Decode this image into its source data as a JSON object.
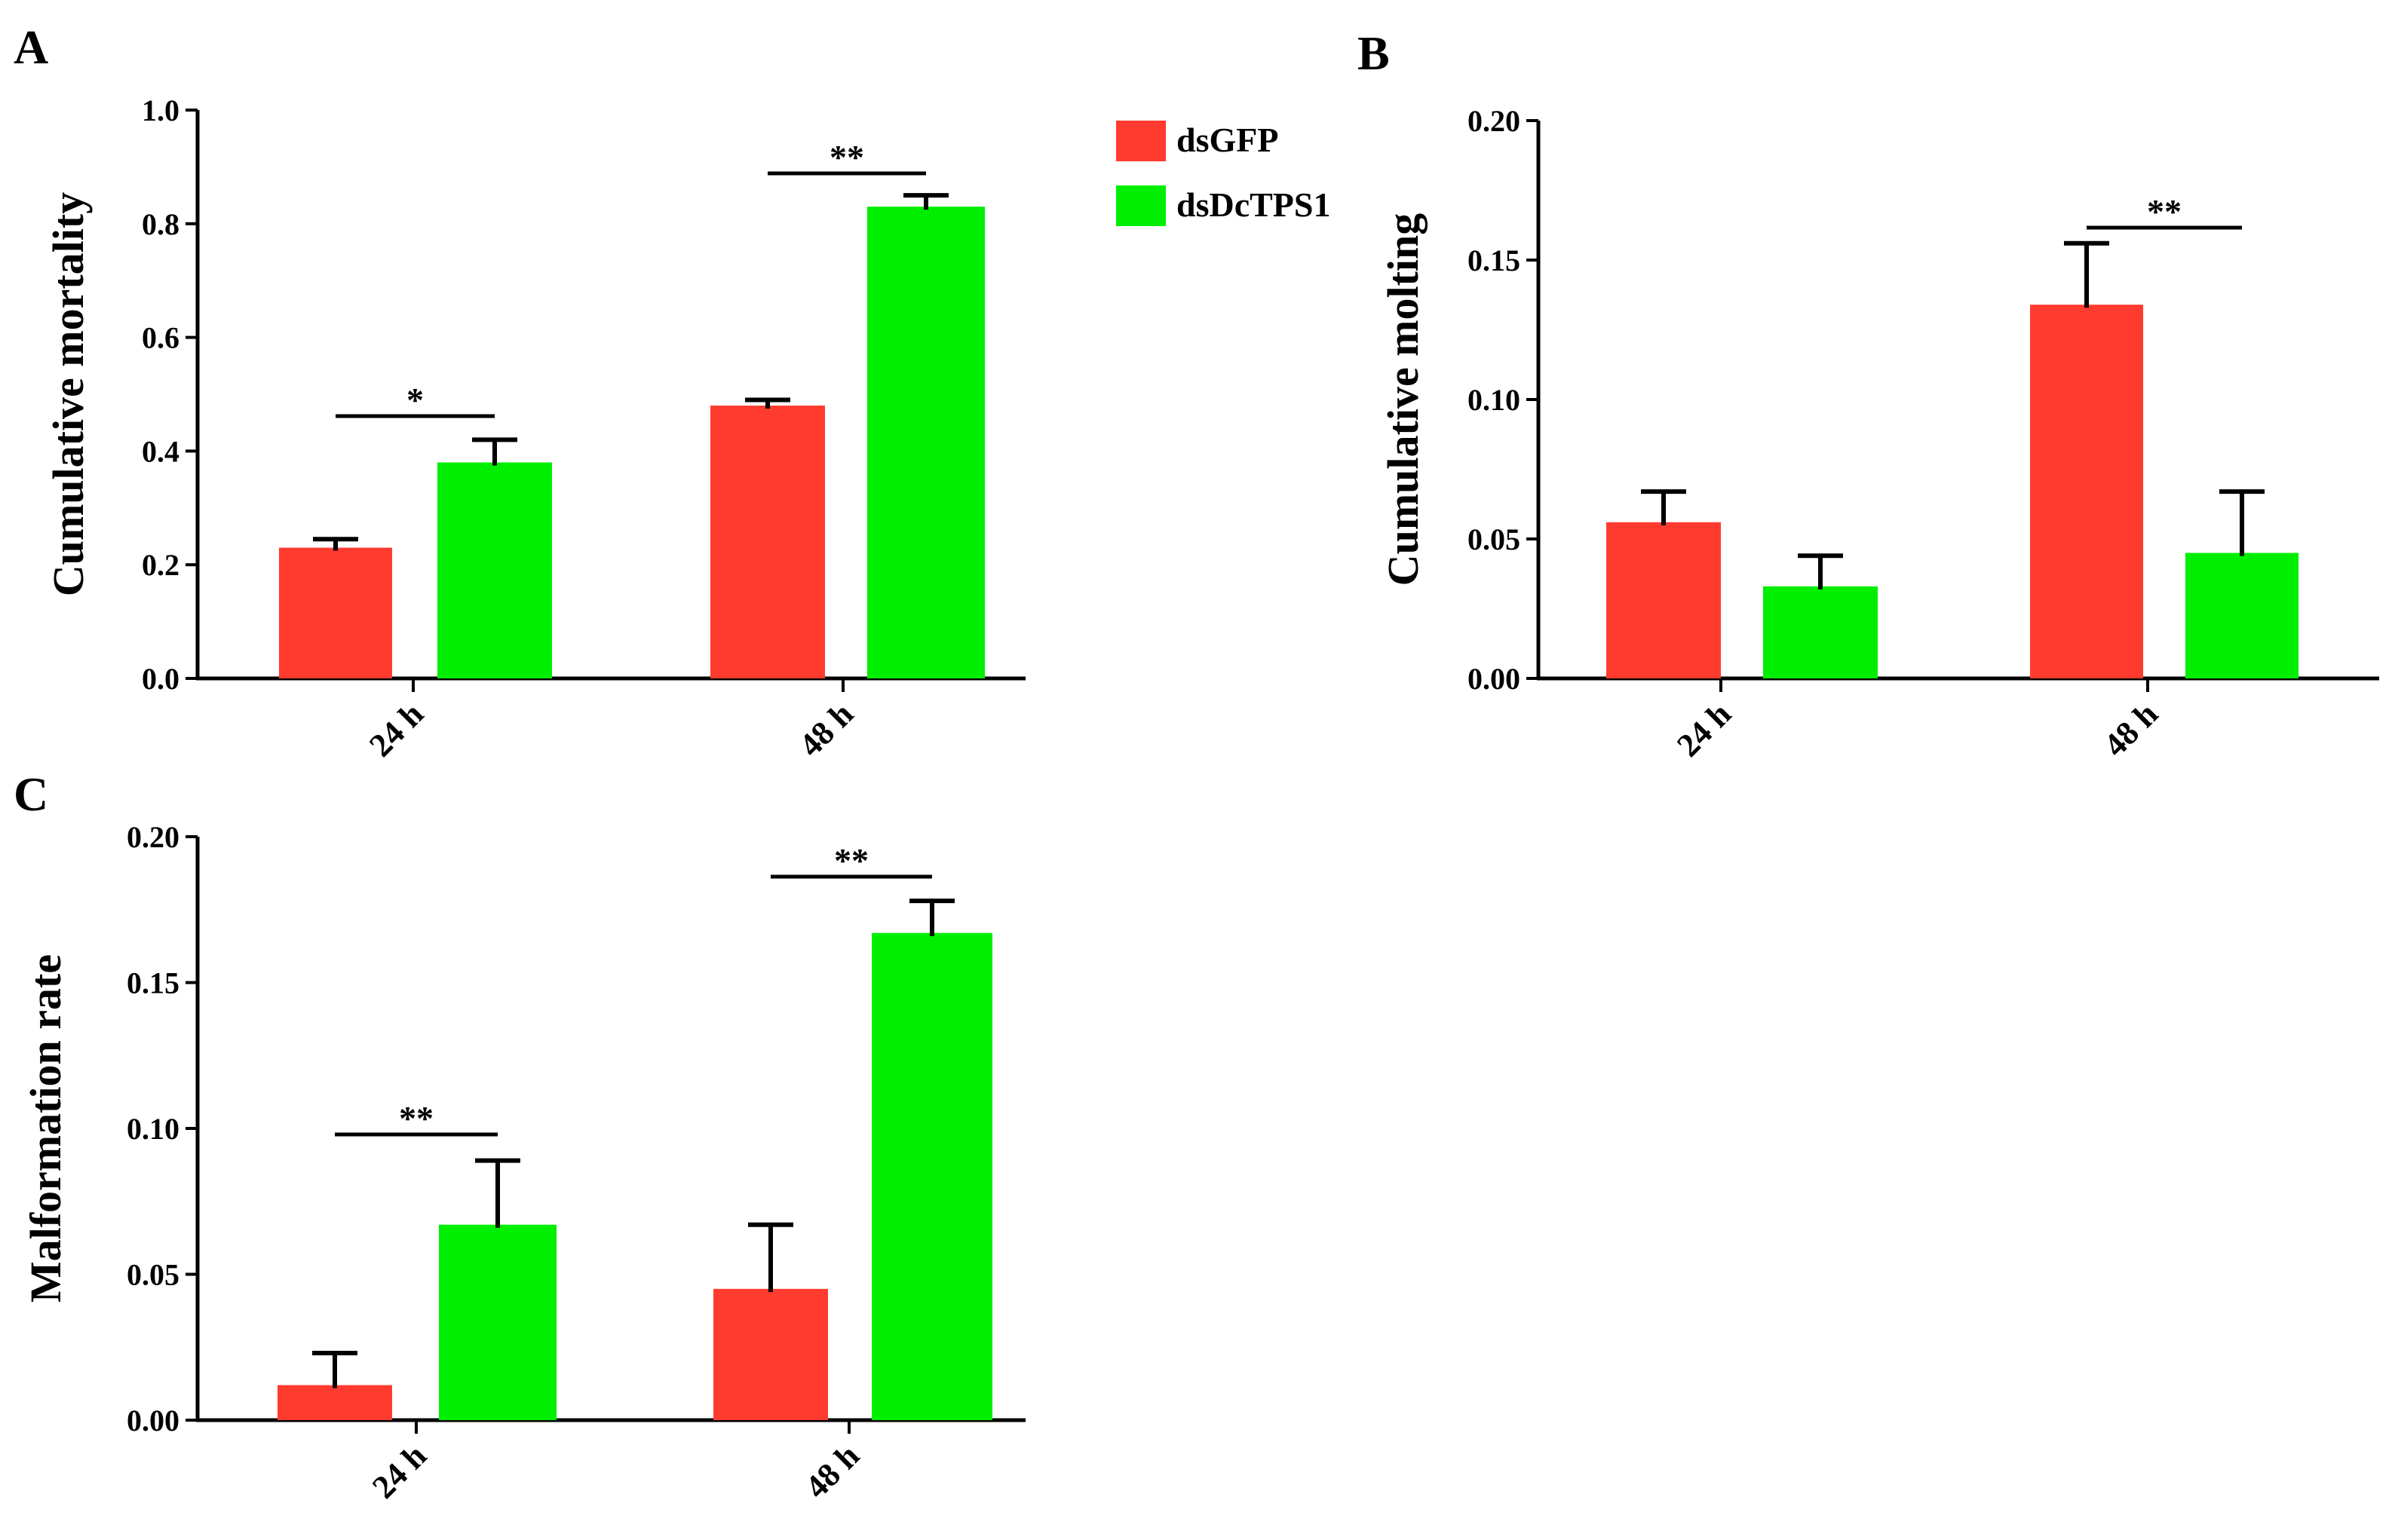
{
  "colors": {
    "dsGFP": "#ff3b2f",
    "dsDcTPS1": "#00ee00",
    "axis": "#000000"
  },
  "legend": {
    "items": [
      {
        "label": "dsGFP",
        "color": "#ff3b2f"
      },
      {
        "label": "dsDcTPS1",
        "color": "#00ee00"
      }
    ]
  },
  "chart_data": [
    {
      "panel": "A",
      "type": "bar",
      "ylabel": "Cumulative mortality",
      "ylim": [
        0,
        1.0
      ],
      "yticks": [
        "0.0",
        "0.2",
        "0.4",
        "0.6",
        "0.8",
        "1.0"
      ],
      "categories": [
        "24 h",
        "48 h"
      ],
      "series": [
        {
          "name": "dsGFP",
          "values": [
            0.23,
            0.48
          ],
          "errors": [
            0.015,
            0.01
          ]
        },
        {
          "name": "dsDcTPS1",
          "values": [
            0.38,
            0.83
          ],
          "errors": [
            0.04,
            0.02
          ]
        }
      ],
      "significance": [
        "*",
        "**"
      ]
    },
    {
      "panel": "B",
      "type": "bar",
      "ylabel": "Cumulative molting",
      "ylim": [
        0,
        0.2
      ],
      "yticks": [
        "0.00",
        "0.05",
        "0.10",
        "0.15",
        "0.20"
      ],
      "categories": [
        "24 h",
        "48 h"
      ],
      "series": [
        {
          "name": "dsGFP",
          "values": [
            0.056,
            0.134
          ],
          "errors": [
            0.011,
            0.022
          ]
        },
        {
          "name": "dsDcTPS1",
          "values": [
            0.033,
            0.045
          ],
          "errors": [
            0.011,
            0.022
          ]
        }
      ],
      "significance": [
        null,
        "**"
      ]
    },
    {
      "panel": "C",
      "type": "bar",
      "ylabel": "Malformation rate",
      "ylim": [
        0,
        0.2
      ],
      "yticks": [
        "0.00",
        "0.05",
        "0.10",
        "0.15",
        "0.20"
      ],
      "categories": [
        "24 h",
        "48 h"
      ],
      "series": [
        {
          "name": "dsGFP",
          "values": [
            0.012,
            0.045
          ],
          "errors": [
            0.011,
            0.022
          ]
        },
        {
          "name": "dsDcTPS1",
          "values": [
            0.067,
            0.167
          ],
          "errors": [
            0.022,
            0.011
          ]
        }
      ],
      "significance": [
        "**",
        "**"
      ]
    }
  ]
}
